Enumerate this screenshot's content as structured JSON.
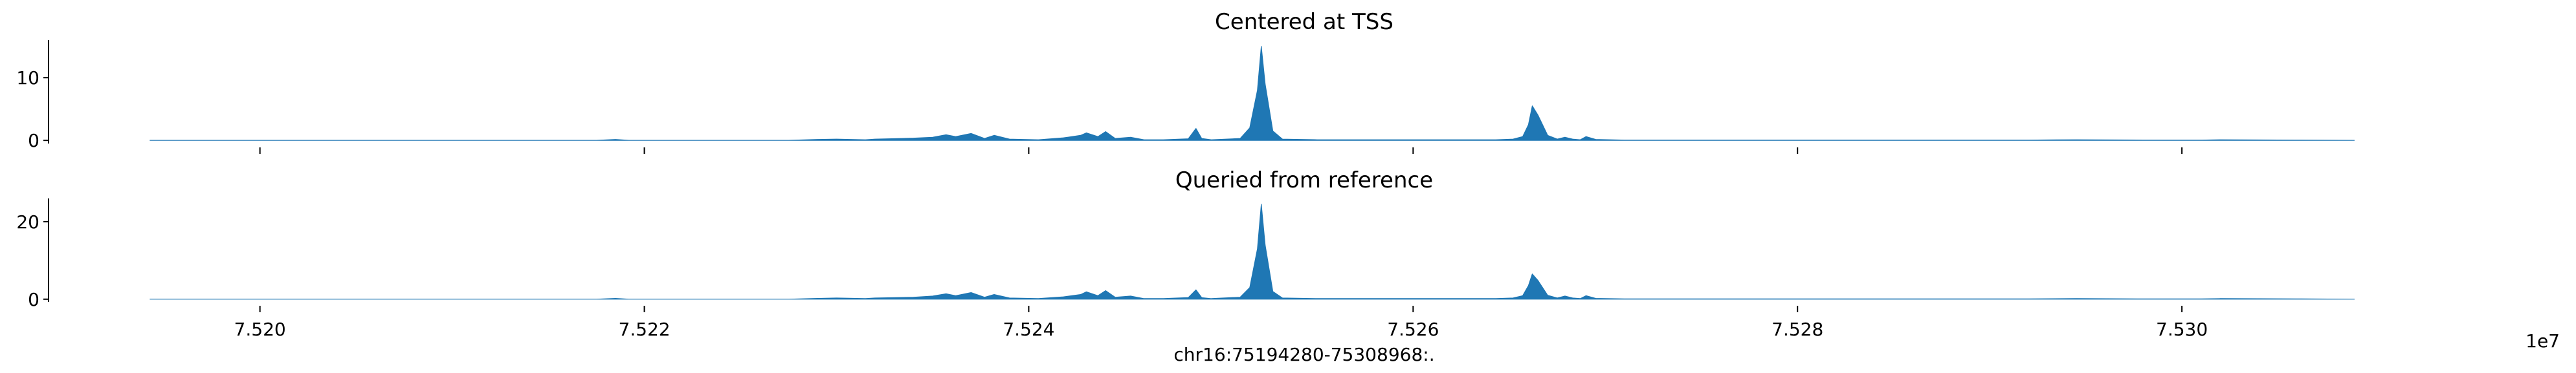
{
  "figure": {
    "xlabel": "chr16:75194280-75308968:.",
    "offset_text": "1e7"
  },
  "chart_data": [
    {
      "type": "area",
      "title": "Centered at TSS",
      "xlabel": "",
      "ylabel": "",
      "xlim": [
        75189000,
        75320000
      ],
      "ylim": [
        -0.5,
        16
      ],
      "x_ticks": [
        75200000,
        75220000,
        75240000,
        75260000,
        75280000,
        75300000
      ],
      "x_tick_labels": [],
      "y_ticks": [
        0,
        10
      ],
      "y_tick_labels": [
        "0",
        "10"
      ],
      "grid": false,
      "color": "#1f77b4",
      "series": [
        {
          "x": [
            75194280,
            75210000,
            75217500,
            75218500,
            75219200,
            75222000,
            75227500,
            75229000,
            75230000,
            75231500,
            75232000,
            75234000,
            75235000,
            75235700,
            75236200,
            75237000,
            75237700,
            75238200,
            75239000,
            75240500,
            75241800,
            75242700,
            75243000,
            75243600,
            75244000,
            75244500,
            75245300,
            75246000,
            75247000,
            75248300,
            75248700,
            75249000,
            75249500,
            75251000,
            75251500,
            75251900,
            75252100,
            75252300,
            75252700,
            75253200,
            75255000,
            75258500,
            75260000,
            75262000,
            75263500,
            75264300,
            75265200,
            75265700,
            75266000,
            75266200,
            75266500,
            75267000,
            75267500,
            75267900,
            75268300,
            75268700,
            75269000,
            75269500,
            75271000,
            75276000,
            75280000,
            75288000,
            75292000,
            75294500,
            75298000,
            75301000,
            75302000,
            75306000,
            75308968
          ],
          "values": [
            0,
            0,
            0,
            0.15,
            0,
            0,
            0,
            0.15,
            0.2,
            0.1,
            0.2,
            0.35,
            0.5,
            0.9,
            0.6,
            1.1,
            0.3,
            0.8,
            0.2,
            0.1,
            0.4,
            0.8,
            1.2,
            0.6,
            1.4,
            0.3,
            0.5,
            0.1,
            0.1,
            0.25,
            1.9,
            0.3,
            0.1,
            0.3,
            2.0,
            8.0,
            15.0,
            9.0,
            1.5,
            0.2,
            0.1,
            0.1,
            0.1,
            0.1,
            0.1,
            0.1,
            0.2,
            0.6,
            2.5,
            5.5,
            4.0,
            0.8,
            0.2,
            0.5,
            0.2,
            0.1,
            0.6,
            0.15,
            0.05,
            0.05,
            0.05,
            0.05,
            0.05,
            0.1,
            0.05,
            0.05,
            0.1,
            0.05,
            0
          ]
        }
      ]
    },
    {
      "type": "area",
      "title": "Queried from reference",
      "xlabel": "",
      "ylabel": "",
      "xlim": [
        75189000,
        75320000
      ],
      "ylim": [
        -0.7,
        26
      ],
      "x_ticks": [
        75200000,
        75220000,
        75240000,
        75260000,
        75280000,
        75300000
      ],
      "x_tick_labels": [
        "7.520",
        "7.522",
        "7.524",
        "7.526",
        "7.528",
        "7.530"
      ],
      "y_ticks": [
        0,
        20
      ],
      "y_tick_labels": [
        "0",
        "20"
      ],
      "grid": false,
      "color": "#1f77b4",
      "series": [
        {
          "x": [
            75194280,
            75210000,
            75217500,
            75218500,
            75219200,
            75222000,
            75227500,
            75229000,
            75230000,
            75231500,
            75232000,
            75234000,
            75235000,
            75235700,
            75236200,
            75237000,
            75237700,
            75238200,
            75239000,
            75240500,
            75241800,
            75242700,
            75243000,
            75243600,
            75244000,
            75244500,
            75245300,
            75246000,
            75247000,
            75248300,
            75248700,
            75249000,
            75249500,
            75251000,
            75251500,
            75251900,
            75252100,
            75252300,
            75252700,
            75253200,
            75255000,
            75258500,
            75260000,
            75262000,
            75263500,
            75264300,
            75265200,
            75265700,
            75266000,
            75266200,
            75266500,
            75267000,
            75267500,
            75267900,
            75268300,
            75268700,
            75269000,
            75269500,
            75271000,
            75276000,
            75280000,
            75288000,
            75292000,
            75294500,
            75298000,
            75301000,
            75302000,
            75306000,
            75308968
          ],
          "values": [
            0,
            0,
            0,
            0.2,
            0,
            0,
            0,
            0.2,
            0.3,
            0.15,
            0.3,
            0.5,
            0.8,
            1.4,
            0.9,
            1.7,
            0.5,
            1.2,
            0.3,
            0.15,
            0.6,
            1.2,
            1.9,
            0.9,
            2.2,
            0.5,
            0.8,
            0.15,
            0.15,
            0.4,
            2.4,
            0.4,
            0.15,
            0.5,
            3.0,
            13.0,
            24.5,
            14.0,
            2.0,
            0.3,
            0.15,
            0.15,
            0.15,
            0.15,
            0.15,
            0.15,
            0.3,
            0.9,
            3.5,
            6.5,
            4.8,
            1.0,
            0.3,
            0.8,
            0.3,
            0.15,
            0.9,
            0.2,
            0.08,
            0.08,
            0.08,
            0.08,
            0.08,
            0.15,
            0.08,
            0.08,
            0.15,
            0.08,
            0
          ]
        }
      ]
    }
  ]
}
